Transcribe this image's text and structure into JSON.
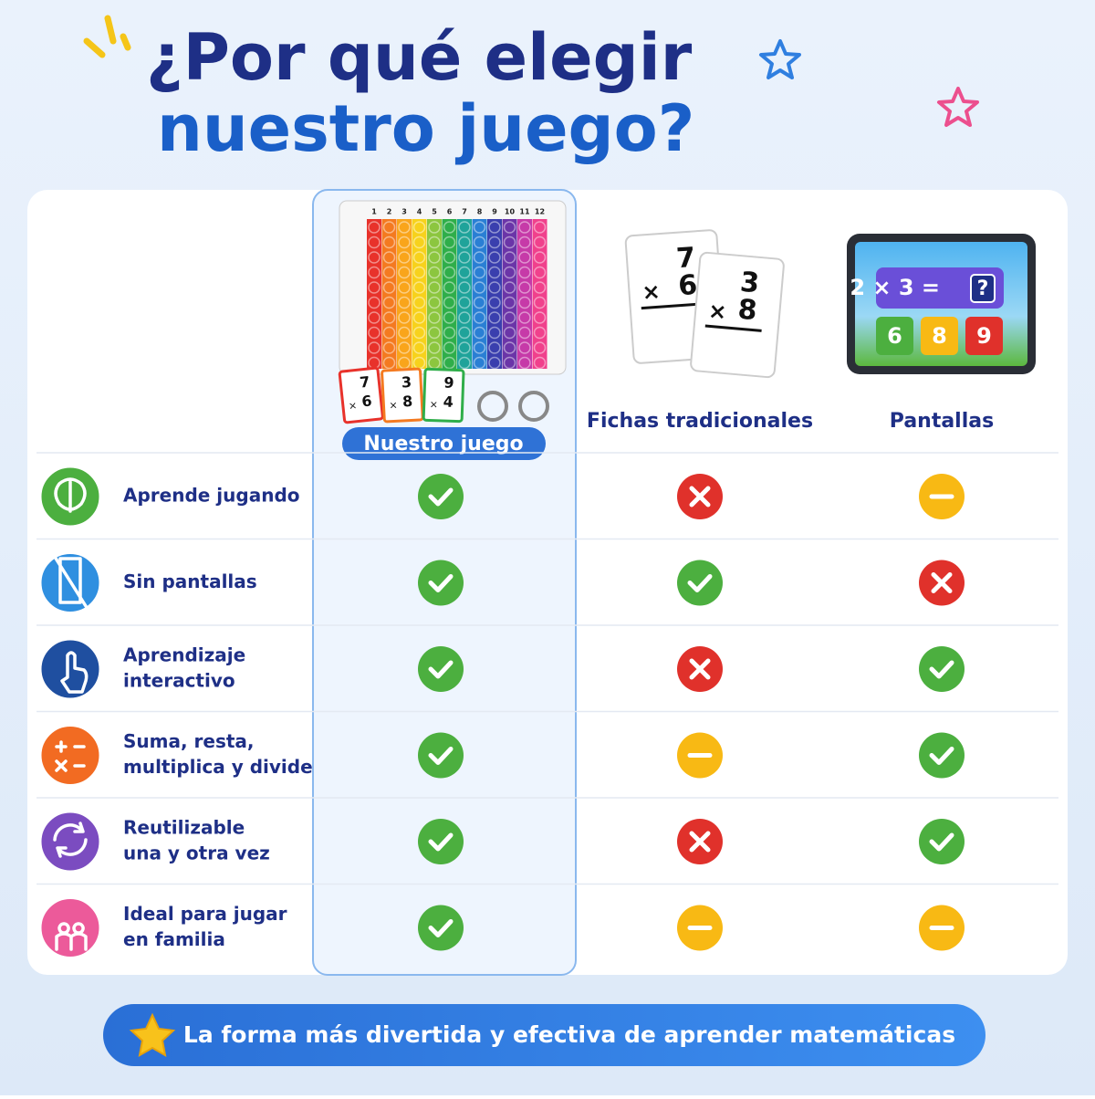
{
  "header": {
    "title_line1": "¿Por qué elegir",
    "title_line2": "nuestro juego?"
  },
  "table": {
    "columns": [
      "Nuestro juego",
      "Fichas tradicionales",
      "Pantallas"
    ],
    "rows": [
      {
        "label": [
          "Aprende jugando"
        ],
        "marks": [
          "check",
          "cross",
          "dash"
        ]
      },
      {
        "label": [
          "Sin pantallas"
        ],
        "marks": [
          "check",
          "check",
          "cross"
        ]
      },
      {
        "label": [
          "Aprendizaje",
          "interactivo"
        ],
        "marks": [
          "check",
          "cross",
          "check"
        ]
      },
      {
        "label": [
          "Suma, resta,",
          "multiplica y divide"
        ],
        "marks": [
          "check",
          "dash",
          "check"
        ]
      },
      {
        "label": [
          "Reutilizable",
          "una y otra vez"
        ],
        "marks": [
          "check",
          "cross",
          "check"
        ]
      },
      {
        "label": [
          "Ideal para jugar",
          "en familia"
        ],
        "marks": [
          "check",
          "dash",
          "dash"
        ]
      }
    ]
  },
  "illustrations": {
    "board_numbers": [
      "1",
      "2",
      "3",
      "4",
      "5",
      "6",
      "7",
      "8",
      "9",
      "10",
      "11",
      "12"
    ],
    "small_cards": [
      {
        "top": "7",
        "operator": "×",
        "bottom": "6"
      },
      {
        "top": "3",
        "operator": "×",
        "bottom": "8"
      },
      {
        "top": "9",
        "operator": "×",
        "bottom": "4"
      }
    ],
    "flashcards": [
      {
        "top": "7",
        "operator": "×",
        "bottom": "6"
      },
      {
        "top": "3",
        "operator": "×",
        "bottom": "8"
      }
    ],
    "tablet": {
      "equation": "2 × 3 =",
      "unknown": "?",
      "options": [
        "6",
        "8",
        "9"
      ]
    }
  },
  "footer": {
    "text": "La forma más divertida y efectiva de aprender matemáticas"
  }
}
